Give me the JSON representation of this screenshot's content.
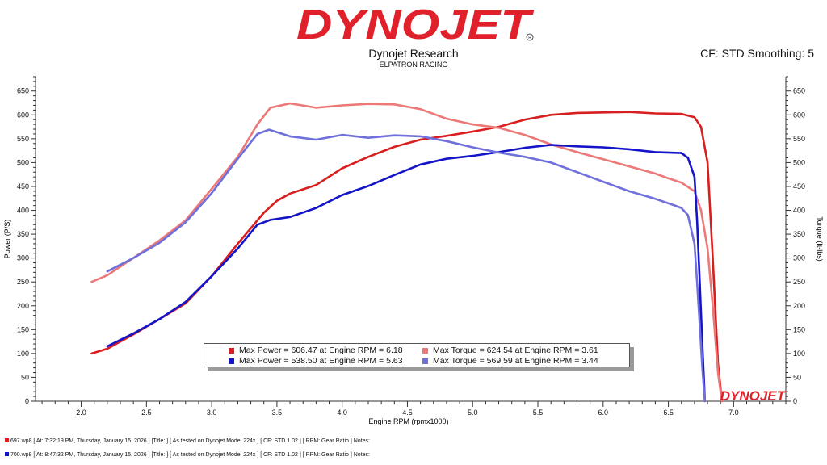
{
  "header": {
    "brand": "DYNOJET",
    "title": "Dynojet Research",
    "subtitle": "ELPATRON RACING",
    "cf_info": "CF: STD Smoothing: 5",
    "watermark": "DYNOJET"
  },
  "colors": {
    "run1_power": "#d81e1e",
    "run1_torque": "#ec7878",
    "run2_power": "#1414c8",
    "run2_torque": "#7070dc",
    "logo_red": "#e0202a"
  },
  "legend": {
    "items": [
      {
        "text": "Max Power = 606.47 at Engine RPM = 6.18",
        "color": "#d81e1e"
      },
      {
        "text": "Max Torque = 624.54 at Engine RPM = 3.61",
        "color": "#ec7878"
      },
      {
        "text": "Max Power = 538.50 at Engine RPM = 5.63",
        "color": "#1414c8"
      },
      {
        "text": "Max Torque = 569.59 at Engine RPM = 3.44",
        "color": "#7070dc"
      }
    ]
  },
  "footer": {
    "runs": [
      {
        "text": "697.wp8 [ At: 7:32:19 PM, Thursday, January 15, 2026 ] [Title: ]  [ As tested on Dynojet Model 224x ] [ CF: STD 1.02 ] [ RPM: Gear Ratio ] Notes:",
        "color": "#d81e1e"
      },
      {
        "text": "700.wp8 [ At: 8:47:32 PM, Thursday, January 15, 2026 ] [Title: ]  [ As tested on Dynojet Model 224x ] [ CF: STD 1.02 ] [ RPM: Gear Ratio ] Notes:",
        "color": "#1414c8"
      }
    ]
  },
  "chart_data": {
    "type": "line",
    "xlabel": "Engine RPM (rpmx1000)",
    "ylabel": "Power (P/S)",
    "y2label": "Torque (ft-lbs)",
    "xlim": [
      1.65,
      7.4
    ],
    "ylim": [
      0,
      680
    ],
    "y2lim": [
      0,
      680
    ],
    "xticks": [
      2.0,
      2.5,
      3.0,
      3.5,
      4.0,
      4.5,
      5.0,
      5.5,
      6.0,
      6.5,
      7.0
    ],
    "xtick_labels": [
      "2.0",
      "2.5",
      "3.0",
      "3.5",
      "4.0",
      "4.5",
      "5.0",
      "5.5",
      "6.0",
      "6.5",
      "7.0"
    ],
    "yticks": [
      0,
      50,
      100,
      150,
      200,
      250,
      300,
      350,
      400,
      450,
      500,
      550,
      600,
      650
    ],
    "ytick_labels": [
      "0",
      "50",
      "100",
      "150",
      "200",
      "250",
      "300",
      "350",
      "400",
      "450",
      "500",
      "550",
      "600",
      "650"
    ],
    "grid": false,
    "series": [
      {
        "color": "#d81e1e",
        "axis": "left",
        "x": [
          2.08,
          2.2,
          2.4,
          2.6,
          2.8,
          3.0,
          3.2,
          3.4,
          3.5,
          3.6,
          3.8,
          4.0,
          4.2,
          4.4,
          4.6,
          4.8,
          5.0,
          5.2,
          5.4,
          5.6,
          5.8,
          6.0,
          6.2,
          6.4,
          6.6,
          6.7,
          6.75,
          6.8,
          6.84,
          6.88,
          6.91
        ],
        "y": [
          100,
          110,
          140,
          172,
          205,
          262,
          330,
          395,
          420,
          435,
          453,
          488,
          512,
          533,
          548,
          556,
          565,
          575,
          590,
          600,
          604,
          605,
          606,
          603,
          602,
          595,
          575,
          500,
          300,
          80,
          0
        ]
      },
      {
        "color": "#ec7878",
        "axis": "right",
        "x": [
          2.08,
          2.2,
          2.4,
          2.6,
          2.8,
          3.0,
          3.2,
          3.35,
          3.45,
          3.6,
          3.8,
          4.0,
          4.2,
          4.4,
          4.6,
          4.8,
          5.0,
          5.2,
          5.4,
          5.6,
          5.8,
          6.0,
          6.2,
          6.4,
          6.5,
          6.6,
          6.7,
          6.75,
          6.8,
          6.84,
          6.88,
          6.91
        ],
        "y": [
          250,
          264,
          300,
          337,
          379,
          445,
          512,
          580,
          615,
          624,
          615,
          620,
          623,
          622,
          612,
          592,
          580,
          573,
          558,
          538,
          522,
          507,
          492,
          477,
          467,
          458,
          440,
          400,
          320,
          200,
          60,
          0
        ]
      },
      {
        "color": "#1414c8",
        "axis": "left",
        "x": [
          2.2,
          2.4,
          2.6,
          2.8,
          3.0,
          3.2,
          3.35,
          3.45,
          3.6,
          3.8,
          4.0,
          4.2,
          4.4,
          4.6,
          4.8,
          5.0,
          5.2,
          5.4,
          5.6,
          5.8,
          6.0,
          6.2,
          6.4,
          6.6,
          6.65,
          6.7,
          6.72,
          6.74,
          6.76,
          6.78
        ],
        "y": [
          115,
          142,
          172,
          208,
          262,
          320,
          370,
          380,
          386,
          405,
          432,
          451,
          474,
          496,
          508,
          514,
          522,
          531,
          537,
          534,
          532,
          528,
          522,
          520,
          510,
          470,
          380,
          250,
          120,
          0
        ]
      },
      {
        "color": "#7070dc",
        "axis": "right",
        "x": [
          2.2,
          2.4,
          2.6,
          2.8,
          3.0,
          3.2,
          3.35,
          3.44,
          3.6,
          3.8,
          4.0,
          4.2,
          4.4,
          4.6,
          4.8,
          5.0,
          5.2,
          5.4,
          5.6,
          5.8,
          6.0,
          6.2,
          6.4,
          6.55,
          6.6,
          6.65,
          6.7,
          6.72,
          6.74,
          6.76,
          6.78
        ],
        "y": [
          272,
          300,
          332,
          375,
          436,
          508,
          560,
          569,
          555,
          548,
          558,
          552,
          557,
          555,
          545,
          532,
          521,
          512,
          500,
          480,
          460,
          440,
          424,
          410,
          405,
          390,
          330,
          250,
          160,
          70,
          0
        ]
      }
    ]
  }
}
